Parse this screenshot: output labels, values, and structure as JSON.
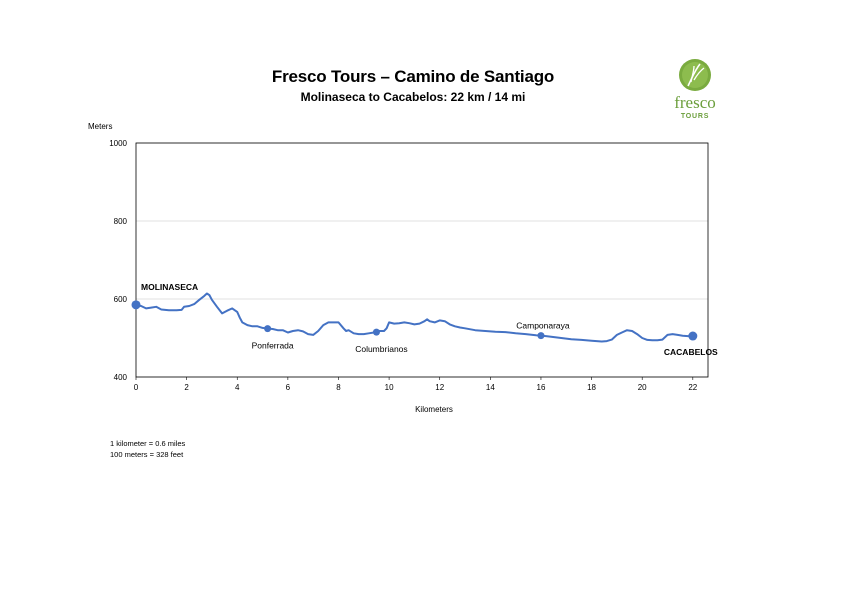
{
  "header": {
    "title": "Fresco Tours – Camino de Santiago",
    "subtitle": "Molinaseca to Cacabelos: 22 km / 14 mi"
  },
  "logo": {
    "name": "fresco",
    "tagline": "TOURS",
    "icon": "leaf-icon",
    "color": "#6b9e3b"
  },
  "notes": {
    "line1": "1 kilometer = 0.6 miles",
    "line2": "100 meters = 328 feet"
  },
  "chart_data": {
    "type": "line",
    "title": "Fresco Tours – Camino de Santiago",
    "subtitle": "Molinaseca to Cacabelos: 22 km / 14 mi",
    "xlabel": "Kilometers",
    "ylabel": "Meters",
    "xlim": [
      0,
      22.6
    ],
    "ylim": [
      400,
      1000
    ],
    "xticks": [
      "0",
      "2",
      "4",
      "6",
      "8",
      "10",
      "12",
      "14",
      "16",
      "18",
      "20",
      "22"
    ],
    "yticks": [
      "400",
      "600",
      "800",
      "1000"
    ],
    "grid": "horizontal",
    "line_color": "#4472c4",
    "series": [
      {
        "x": [
          0,
          0.2,
          0.4,
          0.6,
          0.8,
          1.0,
          1.3,
          1.6,
          1.8,
          1.9,
          2.1,
          2.3,
          2.5,
          2.7,
          2.8,
          2.9,
          3.0,
          3.2,
          3.4,
          3.6,
          3.8,
          4.0,
          4.1,
          4.2,
          4.4,
          4.6,
          4.8,
          5.0,
          5.2,
          5.4,
          5.6,
          5.8,
          6.0,
          6.2,
          6.4,
          6.6,
          6.8,
          7.0,
          7.2,
          7.4,
          7.6,
          7.8,
          8.0,
          8.2,
          8.3,
          8.4,
          8.6,
          8.8,
          9.0,
          9.2,
          9.4,
          9.6,
          9.8,
          9.9,
          10.0,
          10.2,
          10.4,
          10.6,
          10.8,
          11.0,
          11.2,
          11.4,
          11.5,
          11.6,
          11.8,
          12.0,
          12.2,
          12.4,
          12.6,
          12.8,
          13.0,
          13.4,
          13.8,
          14.2,
          14.6,
          15.0,
          15.4,
          15.8,
          16.0,
          16.2,
          16.4,
          16.8,
          17.2,
          17.6,
          18.0,
          18.4,
          18.6,
          18.8,
          19.0,
          19.2,
          19.4,
          19.6,
          19.8,
          20.0,
          20.2,
          20.4,
          20.6,
          20.8,
          21.0,
          21.2,
          21.4,
          21.6,
          21.8,
          22.0
        ],
        "y": [
          585,
          582,
          576,
          578,
          580,
          573,
          571,
          571,
          572,
          580,
          582,
          587,
          598,
          608,
          614,
          610,
          598,
          580,
          563,
          570,
          576,
          567,
          552,
          540,
          533,
          530,
          530,
          526,
          524,
          523,
          520,
          520,
          514,
          518,
          520,
          517,
          510,
          508,
          518,
          533,
          540,
          540,
          540,
          525,
          518,
          520,
          512,
          510,
          510,
          512,
          514,
          518,
          518,
          525,
          540,
          537,
          538,
          540,
          538,
          535,
          537,
          543,
          548,
          543,
          540,
          545,
          543,
          535,
          530,
          527,
          525,
          520,
          518,
          516,
          515,
          512,
          510,
          507,
          506,
          505,
          503,
          500,
          497,
          495,
          493,
          491,
          492,
          496,
          508,
          514,
          520,
          518,
          510,
          500,
          495,
          494,
          494,
          496,
          508,
          510,
          508,
          506,
          505,
          505
        ]
      }
    ],
    "markers": [
      {
        "x": 0,
        "y": 585,
        "label": "MOLINASECA",
        "bold": true
      },
      {
        "x": 5.2,
        "y": 524,
        "label": "Ponferrada",
        "bold": false
      },
      {
        "x": 9.5,
        "y": 515,
        "label": "Columbrianos",
        "bold": false
      },
      {
        "x": 16.0,
        "y": 506,
        "label": "Camponaraya",
        "bold": false
      },
      {
        "x": 22.0,
        "y": 505,
        "label": "CACABELOS",
        "bold": true
      }
    ]
  }
}
